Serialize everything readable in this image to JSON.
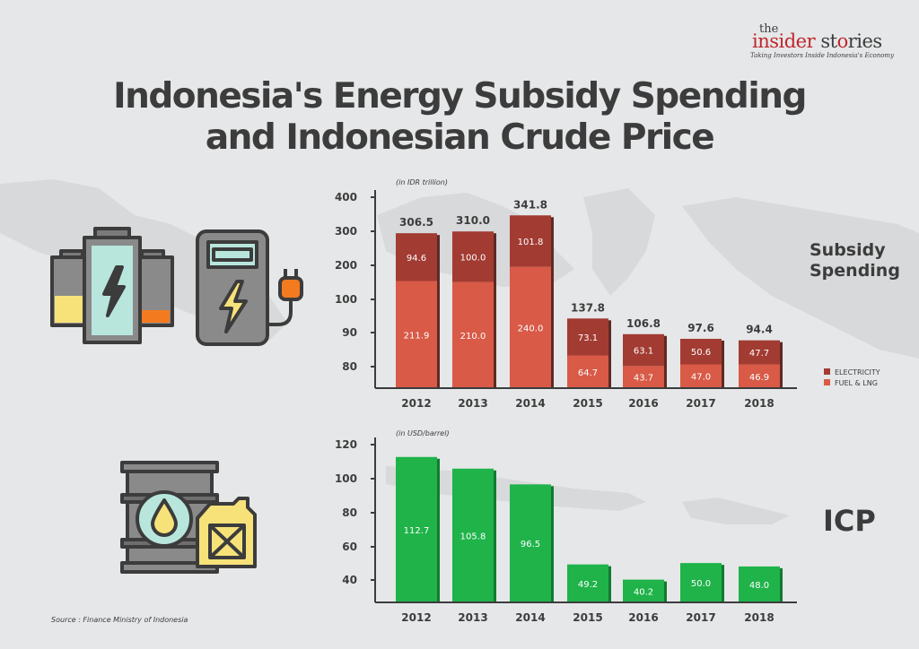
{
  "title": {
    "line1": "Indonesia's Energy Subsidy Spending",
    "line2": "and Indonesian Crude Price"
  },
  "logo": {
    "the": "the",
    "insider": "insider",
    "stories_a": "st",
    "stories_o": "o",
    "stories_b": "ries",
    "tagline": "Taking Investors Inside Indonesia's Economy"
  },
  "labels": {
    "subsidy_line1": "Subsidy",
    "subsidy_line2": "Spending",
    "icp": "ICP"
  },
  "source": "Source : Finance Ministry of Indonesia",
  "colors": {
    "electricity": "#a23b32",
    "fuel": "#d85a47",
    "icp": "#1fb34a",
    "text": "#3c3c3c",
    "background": "#e6e7e8"
  },
  "icons": [
    "battery-icon",
    "charging-station-icon",
    "oil-barrel-icon",
    "jerry-can-icon"
  ],
  "chart_data": [
    {
      "type": "bar",
      "stacked": true,
      "unit_label": "(in IDR trillion)",
      "categories": [
        "2012",
        "2013",
        "2014",
        "2015",
        "2016",
        "2017",
        "2018"
      ],
      "y_ticks": [
        "400",
        "300",
        "200",
        "100",
        "90",
        "80"
      ],
      "series": [
        {
          "name": "FUEL & LNG",
          "values": [
            211.9,
            210.0,
            240.0,
            64.7,
            43.7,
            47.0,
            46.9
          ],
          "labels": [
            "211.9",
            "210.0",
            "240.0",
            "64.7",
            "43.7",
            "47.0",
            "46.9"
          ]
        },
        {
          "name": "ELECTRICITY",
          "values": [
            94.6,
            100.0,
            101.8,
            73.1,
            63.1,
            50.6,
            47.7
          ],
          "labels": [
            "94.6",
            "100.0",
            "101.8",
            "73.1",
            "63.1",
            "50.6",
            "47.7"
          ]
        }
      ],
      "totals": [
        306.5,
        310.0,
        341.8,
        137.8,
        106.8,
        97.6,
        94.4
      ],
      "total_labels": [
        "306.5",
        "310.0",
        "341.8",
        "137.8",
        "106.8",
        "97.6",
        "94.4"
      ],
      "legend": [
        "ELECTRICITY",
        "FUEL & LNG"
      ],
      "legend_position": "right"
    },
    {
      "type": "bar",
      "unit_label": "(in USD/barrel)",
      "categories": [
        "2012",
        "2013",
        "2014",
        "2015",
        "2016",
        "2017",
        "2018"
      ],
      "y_ticks": [
        "120",
        "100",
        "80",
        "60",
        "40"
      ],
      "ylim": [
        30,
        120
      ],
      "series": [
        {
          "name": "ICP",
          "values": [
            112.7,
            105.8,
            96.5,
            49.2,
            40.2,
            50.0,
            48.0
          ],
          "labels": [
            "112.7",
            "105.8",
            "96.5",
            "49.2",
            "40.2",
            "50.0",
            "48.0"
          ]
        }
      ]
    }
  ]
}
